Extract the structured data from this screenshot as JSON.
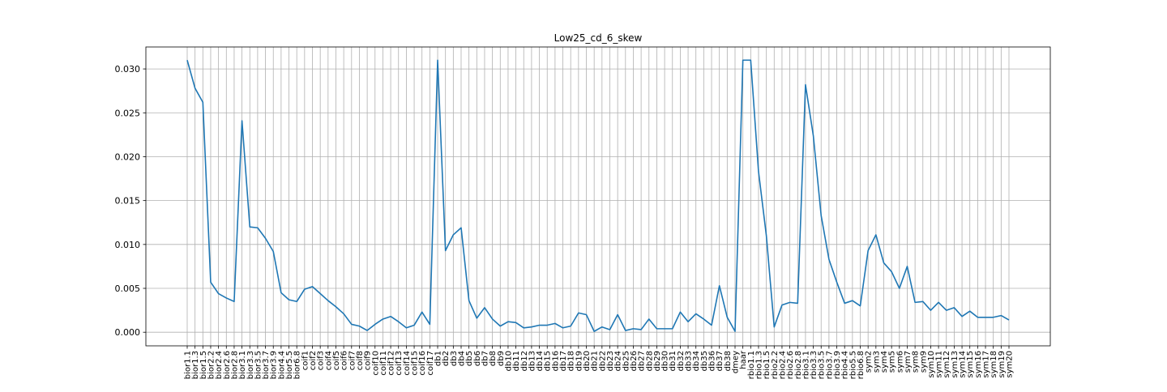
{
  "chart_data": {
    "type": "line",
    "title": "Low25_cd_6_skew",
    "xlabel": "",
    "ylabel": "",
    "ylim": [
      -0.00155,
      0.0325
    ],
    "yticks": [
      "0.000",
      "0.005",
      "0.010",
      "0.015",
      "0.020",
      "0.025",
      "0.030"
    ],
    "ytick_values": [
      0,
      0.005,
      0.01,
      0.015,
      0.02,
      0.025,
      0.03
    ],
    "grid": true,
    "color": "#1f77b4",
    "categories": [
      "bior1.1",
      "bior1.3",
      "bior1.5",
      "bior2.2",
      "bior2.4",
      "bior2.6",
      "bior2.8",
      "bior3.1",
      "bior3.3",
      "bior3.5",
      "bior3.7",
      "bior3.9",
      "bior4.4",
      "bior5.5",
      "bior6.8",
      "coif1",
      "coif2",
      "coif3",
      "coif4",
      "coif5",
      "coif6",
      "coif7",
      "coif8",
      "coif9",
      "coif10",
      "coif11",
      "coif12",
      "coif13",
      "coif14",
      "coif15",
      "coif16",
      "coif17",
      "db1",
      "db2",
      "db3",
      "db4",
      "db5",
      "db6",
      "db7",
      "db8",
      "db9",
      "db10",
      "db11",
      "db12",
      "db13",
      "db14",
      "db15",
      "db16",
      "db17",
      "db18",
      "db19",
      "db20",
      "db21",
      "db22",
      "db23",
      "db24",
      "db25",
      "db26",
      "db27",
      "db28",
      "db29",
      "db30",
      "db31",
      "db32",
      "db33",
      "db34",
      "db35",
      "db36",
      "db37",
      "db38",
      "dmey",
      "haar",
      "rbio1.1",
      "rbio1.3",
      "rbio1.5",
      "rbio2.2",
      "rbio2.4",
      "rbio2.6",
      "rbio2.8",
      "rbio3.1",
      "rbio3.3",
      "rbio3.5",
      "rbio3.7",
      "rbio3.9",
      "rbio4.4",
      "rbio5.5",
      "rbio6.8",
      "sym2",
      "sym3",
      "sym4",
      "sym5",
      "sym6",
      "sym7",
      "sym8",
      "sym9",
      "sym10",
      "sym11",
      "sym12",
      "sym13",
      "sym14",
      "sym15",
      "sym16",
      "sym17",
      "sym18",
      "sym19",
      "sym20"
    ],
    "values": [
      0.031,
      0.0278,
      0.0262,
      0.0057,
      0.0044,
      0.0039,
      0.0035,
      0.0241,
      0.012,
      0.0119,
      0.0107,
      0.0092,
      0.0045,
      0.0037,
      0.0035,
      0.0049,
      0.0052,
      0.0044,
      0.0036,
      0.0029,
      0.0021,
      0.0009,
      0.0007,
      0.0002,
      0.0009,
      0.0015,
      0.0018,
      0.0012,
      0.0005,
      0.0008,
      0.0023,
      0.0009,
      0.031,
      0.0093,
      0.0111,
      0.0119,
      0.0036,
      0.0016,
      0.0028,
      0.0015,
      0.0007,
      0.0012,
      0.0011,
      0.0005,
      0.0006,
      0.0008,
      0.0008,
      0.001,
      0.0005,
      0.0007,
      0.0022,
      0.002,
      0.0001,
      0.0006,
      0.0003,
      0.002,
      0.0002,
      0.0004,
      0.0003,
      0.0015,
      0.0004,
      0.0004,
      0.0004,
      0.0023,
      0.0012,
      0.0021,
      0.0015,
      0.0008,
      0.0053,
      0.0017,
      0.0001,
      0.031,
      0.031,
      0.0183,
      0.011,
      0.0006,
      0.0031,
      0.0034,
      0.0033,
      0.0282,
      0.0224,
      0.0133,
      0.0083,
      0.0057,
      0.0033,
      0.0036,
      0.003,
      0.0093,
      0.0111,
      0.0079,
      0.0069,
      0.005,
      0.0075,
      0.0034,
      0.0035,
      0.0025,
      0.0034,
      0.0025,
      0.0028,
      0.0018,
      0.0024,
      0.0017,
      0.0017,
      0.0017,
      0.0019,
      0.0014
    ]
  }
}
